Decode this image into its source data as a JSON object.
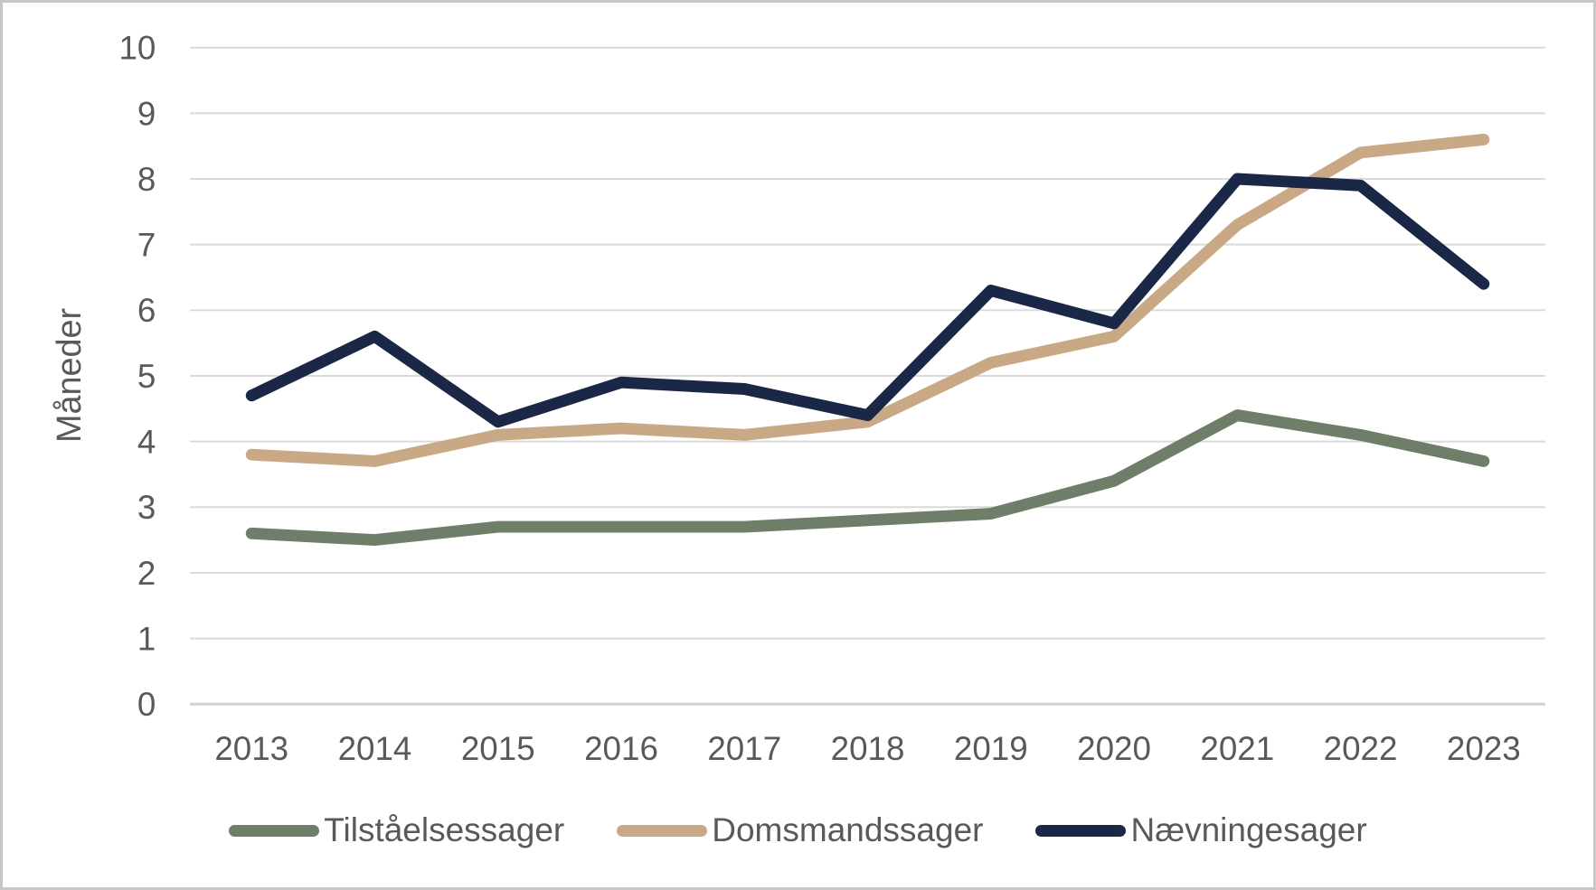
{
  "chart_data": {
    "type": "line",
    "title": "",
    "ylabel": "Måneder",
    "xlabel": "",
    "categories": [
      "2013",
      "2014",
      "2015",
      "2016",
      "2017",
      "2018",
      "2019",
      "2020",
      "2021",
      "2022",
      "2023"
    ],
    "ylim": [
      0,
      10
    ],
    "yticks": [
      0,
      1,
      2,
      3,
      4,
      5,
      6,
      7,
      8,
      9,
      10
    ],
    "grid": "horizontal",
    "legend_position": "bottom",
    "series": [
      {
        "name": "Tilståelsessager",
        "color": "#6F7E69",
        "values": [
          2.6,
          2.5,
          2.7,
          2.7,
          2.7,
          2.8,
          2.9,
          3.4,
          4.4,
          4.1,
          3.7
        ]
      },
      {
        "name": "Domsmandssager",
        "color": "#C9A886",
        "values": [
          3.8,
          3.7,
          4.1,
          4.2,
          4.1,
          4.3,
          5.2,
          5.6,
          7.3,
          8.4,
          8.6
        ]
      },
      {
        "name": "Nævningesager",
        "color": "#1A2747",
        "values": [
          4.7,
          5.6,
          4.3,
          4.9,
          4.8,
          4.4,
          6.3,
          5.8,
          8.0,
          7.9,
          6.4
        ]
      }
    ],
    "gridline_color": "#DADADA",
    "axis_line_color": "#D2D2D2",
    "text_color": "#595959",
    "frame_color": "#C7C7C7"
  }
}
